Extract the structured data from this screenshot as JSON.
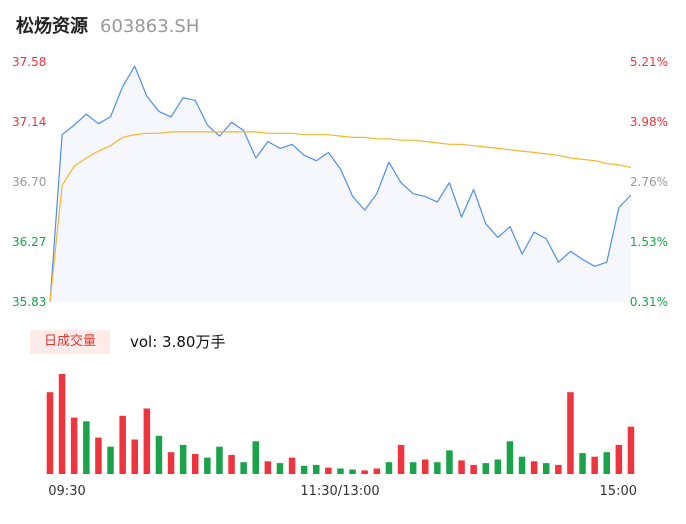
{
  "header": {
    "name": "松炀资源",
    "code": "603863.SH"
  },
  "price_axis": {
    "left_labels": [
      "37.58",
      "37.14",
      "36.70",
      "36.27",
      "35.83"
    ],
    "right_labels": [
      "5.21%",
      "3.98%",
      "2.76%",
      "1.53%",
      "0.31%"
    ],
    "colors": {
      "up": "#f0343e",
      "flat": "#999999",
      "down": "#1aa34a"
    }
  },
  "volume_panel": {
    "tab_label": "日成交量",
    "vol_text": "vol: 3.80万手"
  },
  "time_axis": {
    "labels": [
      "09:30",
      "11:30/13:00",
      "15:00"
    ]
  },
  "colors": {
    "price_line": "#4e8ef0",
    "avg_line": "#f5b52c",
    "vol_up": "#f0343e",
    "vol_down": "#1aa34a",
    "area_fill": "#f5f7fc"
  },
  "chart_data": [
    {
      "type": "line",
      "title": "",
      "x": [
        "09:30",
        "09:35",
        "09:40",
        "09:45",
        "09:50",
        "09:55",
        "10:00",
        "10:05",
        "10:10",
        "10:15",
        "10:20",
        "10:25",
        "10:30",
        "10:35",
        "10:40",
        "10:45",
        "10:50",
        "10:55",
        "11:00",
        "11:05",
        "11:10",
        "11:15",
        "11:20",
        "11:25",
        "11:30",
        "13:05",
        "13:10",
        "13:15",
        "13:20",
        "13:25",
        "13:30",
        "13:35",
        "13:40",
        "13:45",
        "13:50",
        "13:55",
        "14:00",
        "14:05",
        "14:10",
        "14:15",
        "14:20",
        "14:25",
        "14:30",
        "14:35",
        "14:40",
        "14:45",
        "14:50",
        "14:55",
        "15:00"
      ],
      "series": [
        {
          "values": [
            35.83,
            37.05,
            37.12,
            37.2,
            37.13,
            37.18,
            37.4,
            37.55,
            37.33,
            37.22,
            37.18,
            37.32,
            37.3,
            37.12,
            37.04,
            37.14,
            37.08,
            36.88,
            37.0,
            36.95,
            36.98,
            36.9,
            36.86,
            36.92,
            36.8,
            36.6,
            36.5,
            36.62,
            36.85,
            36.7,
            36.62,
            36.6,
            36.56,
            36.7,
            36.45,
            36.65,
            36.4,
            36.3,
            36.38,
            36.18,
            36.34,
            36.29,
            36.12,
            36.2,
            36.14,
            36.09,
            36.12,
            36.52,
            36.61
          ]
        },
        {
          "values": [
            35.83,
            36.68,
            36.82,
            36.88,
            36.93,
            36.97,
            37.03,
            37.05,
            37.06,
            37.06,
            37.07,
            37.07,
            37.07,
            37.07,
            37.07,
            37.07,
            37.07,
            37.07,
            37.06,
            37.06,
            37.06,
            37.05,
            37.05,
            37.05,
            37.04,
            37.03,
            37.03,
            37.02,
            37.02,
            37.01,
            37.01,
            37.0,
            36.99,
            36.98,
            36.98,
            36.97,
            36.96,
            36.95,
            36.94,
            36.93,
            36.92,
            36.91,
            36.9,
            36.88,
            36.87,
            36.86,
            36.84,
            36.83,
            36.81
          ]
        }
      ],
      "ylim": [
        35.83,
        37.58
      ]
    },
    {
      "type": "bar",
      "title": "",
      "x": [
        "09:30",
        "09:35",
        "09:40",
        "09:45",
        "09:50",
        "09:55",
        "10:00",
        "10:05",
        "10:10",
        "10:15",
        "10:20",
        "10:25",
        "10:30",
        "10:35",
        "10:40",
        "10:45",
        "10:50",
        "10:55",
        "11:00",
        "11:05",
        "11:10",
        "11:15",
        "11:20",
        "11:25",
        "11:30",
        "13:05",
        "13:10",
        "13:15",
        "13:20",
        "13:25",
        "13:30",
        "13:35",
        "13:40",
        "13:45",
        "13:50",
        "13:55",
        "14:00",
        "14:05",
        "14:10",
        "14:15",
        "14:20",
        "14:25",
        "14:30",
        "14:35",
        "14:40",
        "14:45",
        "14:50",
        "14:55",
        "15:00"
      ],
      "series": [
        {
          "name": "",
          "values": [
            900,
            1100,
            620,
            580,
            400,
            300,
            640,
            380,
            720,
            420,
            240,
            320,
            220,
            180,
            300,
            210,
            130,
            360,
            140,
            120,
            180,
            90,
            100,
            70,
            60,
            50,
            40,
            60,
            130,
            320,
            130,
            160,
            130,
            260,
            150,
            100,
            120,
            160,
            360,
            190,
            140,
            120,
            100,
            900,
            230,
            190,
            240,
            320,
            520
          ]
        }
      ],
      "dir": [
        "up",
        "up",
        "up",
        "down",
        "up",
        "down",
        "up",
        "up",
        "up",
        "down",
        "up",
        "down",
        "up",
        "down",
        "down",
        "up",
        "down",
        "down",
        "up",
        "down",
        "up",
        "down",
        "down",
        "up",
        "down",
        "down",
        "up",
        "up",
        "down",
        "up",
        "down",
        "up",
        "down",
        "down",
        "up",
        "up",
        "down",
        "down",
        "down",
        "down",
        "up",
        "down",
        "up",
        "up",
        "down",
        "up",
        "down",
        "up",
        "up"
      ]
    }
  ]
}
